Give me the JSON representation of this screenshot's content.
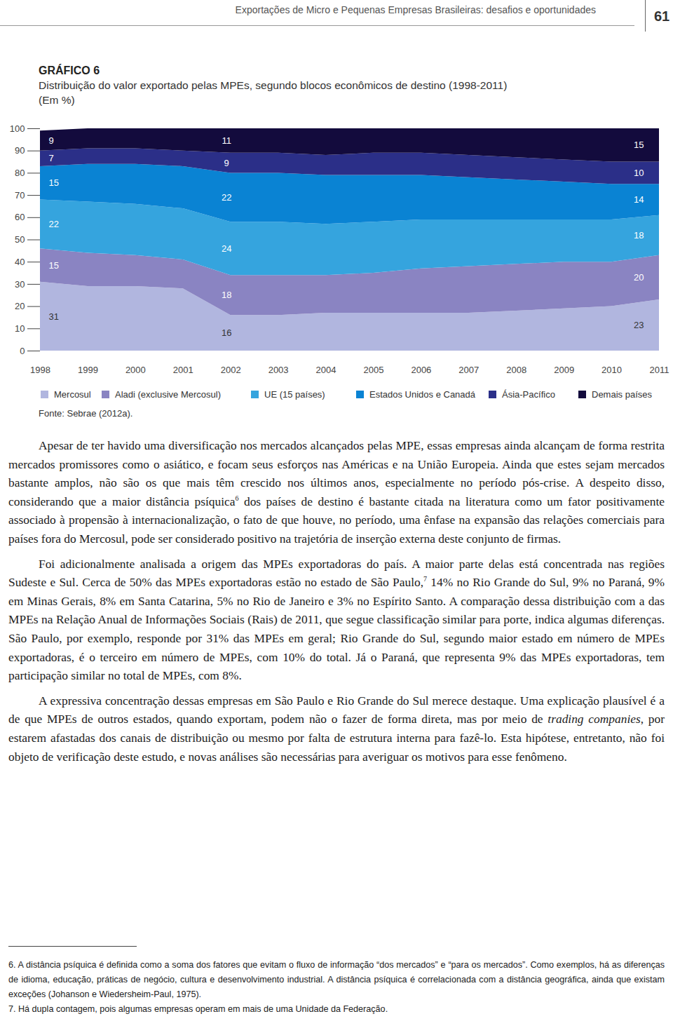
{
  "header": {
    "running_title": "Exportações de Micro e Pequenas Empresas Brasileiras: desafios e oportunidades",
    "page_number": "61"
  },
  "chart_data": {
    "type": "area",
    "title": "GRÁFICO 6",
    "subtitle": [
      "Distribuição do valor exportado pelas MPEs, segundo blocos econômicos de destino (1998-2011)",
      "(Em %)"
    ],
    "source": "Fonte: Sebrae (2012a).",
    "stacked": true,
    "data_labels": true,
    "grid": false,
    "legend": "bottom",
    "x": [
      1998,
      1999,
      2000,
      2001,
      2002,
      2003,
      2004,
      2005,
      2006,
      2007,
      2008,
      2009,
      2010,
      2011
    ],
    "xlim": [
      1998,
      2011
    ],
    "xticks": [
      1998,
      1999,
      2000,
      2001,
      2002,
      2003,
      2004,
      2005,
      2006,
      2007,
      2008,
      2009,
      2010,
      2011
    ],
    "ylim": [
      0,
      100
    ],
    "yticks": [
      0,
      10,
      20,
      30,
      40,
      50,
      60,
      70,
      80,
      90,
      100
    ],
    "series": [
      {
        "name": "Mercosul",
        "color": "#b1b6df",
        "values": [
          31,
          29,
          29,
          28,
          16,
          16,
          17,
          17,
          17,
          17,
          18,
          19,
          20,
          23
        ],
        "value_labels": [
          "31",
          null,
          null,
          null,
          "16",
          null,
          null,
          null,
          null,
          null,
          null,
          null,
          null,
          "23"
        ]
      },
      {
        "name": "Aladi (exclusive Mercosul)",
        "color": "#8a84c2",
        "values": [
          15,
          15,
          14,
          13,
          18,
          18,
          17,
          18,
          20,
          21,
          21,
          21,
          20,
          20
        ],
        "value_labels": [
          "15",
          null,
          null,
          null,
          "18",
          null,
          null,
          null,
          null,
          null,
          null,
          null,
          null,
          "20"
        ]
      },
      {
        "name": "UE (15 países)",
        "color": "#35a4de",
        "values": [
          22,
          23,
          23,
          23,
          24,
          24,
          23,
          23,
          22,
          21,
          20,
          19,
          19,
          18
        ],
        "value_labels": [
          "22",
          null,
          null,
          null,
          "24",
          null,
          null,
          null,
          null,
          null,
          null,
          null,
          null,
          "18"
        ]
      },
      {
        "name": "Estados Unidos e Canadá",
        "color": "#0a83d3",
        "values": [
          15,
          17,
          18,
          19,
          22,
          22,
          22,
          21,
          20,
          19,
          18,
          17,
          16,
          14
        ],
        "value_labels": [
          "15",
          null,
          null,
          null,
          "22",
          null,
          null,
          null,
          null,
          null,
          null,
          null,
          null,
          "14"
        ]
      },
      {
        "name": "Ásia-Pacífico",
        "color": "#2b2f88",
        "values": [
          7,
          7,
          7,
          7,
          9,
          9,
          9,
          10,
          10,
          10,
          10,
          10,
          10,
          10
        ],
        "value_labels": [
          "7",
          null,
          null,
          null,
          "9",
          null,
          null,
          null,
          null,
          null,
          null,
          null,
          null,
          "10"
        ]
      },
      {
        "name": "Demais países",
        "color": "#130b3d",
        "values": [
          9,
          9,
          9,
          10,
          11,
          11,
          12,
          11,
          11,
          12,
          13,
          14,
          15,
          15
        ],
        "value_labels": [
          "9",
          null,
          null,
          null,
          "11",
          null,
          null,
          null,
          null,
          null,
          null,
          null,
          null,
          "15"
        ]
      }
    ]
  },
  "body": [
    [
      {
        "text": "Apesar de ter havido uma diversificação nos mercados alcançados pelas MPE, essas empresas ainda alcançam de forma restrita mercados promissores como o asiático, e focam seus esforços nas Américas e na União Europeia. Ainda que estes sejam mercados bastante amplos, não são os que mais têm crescido nos últimos anos, especialmente no período pós-crise. A despeito disso, considerando que a maior distância psíquica"
      },
      {
        "text": "6",
        "style": "sup"
      },
      {
        "text": " dos países de destino é bastante citada na literatura como um fator positivamente associado à propensão à internacionalização, o fato de que houve, no período, uma ênfase na expansão das relações comerciais para países fora do Mercosul, pode ser considerado positivo na trajetória de inserção externa deste conjunto de firmas."
      }
    ],
    [
      {
        "text": "Foi adicionalmente analisada a origem das MPEs exportadoras do país. A maior parte delas está concentrada nas regiões Sudeste e Sul. Cerca de 50% das MPEs exportadoras estão no estado de São Paulo,"
      },
      {
        "text": "7",
        "style": "sup"
      },
      {
        "text": " 14% no Rio Grande do Sul, 9% no Paraná, 9% em Minas Gerais, 8% em Santa Catarina, 5% no Rio de Janeiro e 3% no Espírito Santo. A comparação dessa distribuição com a das MPEs na Relação Anual de Informações Sociais (Rais) de 2011, que segue classificação similar para porte, indica algumas diferenças. São Paulo, por exemplo, responde por 31% das MPEs em geral; Rio Grande do Sul, segundo maior estado em número de MPEs exportadoras, é o terceiro em número de MPEs, com 10% do total. Já o Paraná, que representa 9% das MPEs exportadoras, tem participação similar no total de MPEs, com 8%."
      }
    ],
    [
      {
        "text": "A expressiva concentração dessas empresas em São Paulo e Rio Grande do Sul merece destaque. Uma explicação plausível é a de que MPEs de outros estados, quando exportam, podem não o fazer de forma direta, mas por meio de "
      },
      {
        "text": "trading companies",
        "style": "italic"
      },
      {
        "text": ", por estarem afastadas dos canais de distribuição ou mesmo por falta de estrutura interna para fazê-lo. Esta hipótese, entretanto, não foi objeto de verificação deste estudo, e novas análises são necessárias para averiguar os motivos para esse fenômeno."
      }
    ]
  ],
  "footnotes": [
    "6. A distância psíquica é definida como a soma dos fatores que evitam o fluxo de informação “dos mercados” e “para os mercados”. Como exemplos, há as diferenças de idioma, educação, práticas de negócio, cultura e desenvolvimento industrial. A distância psíquica é correlacionada com a distância geográfica, ainda que existam exceções (Johanson e Wiedersheim-Paul, 1975).",
    "7. Há dupla contagem, pois algumas empresas operam em mais de uma Unidade da Federação."
  ]
}
